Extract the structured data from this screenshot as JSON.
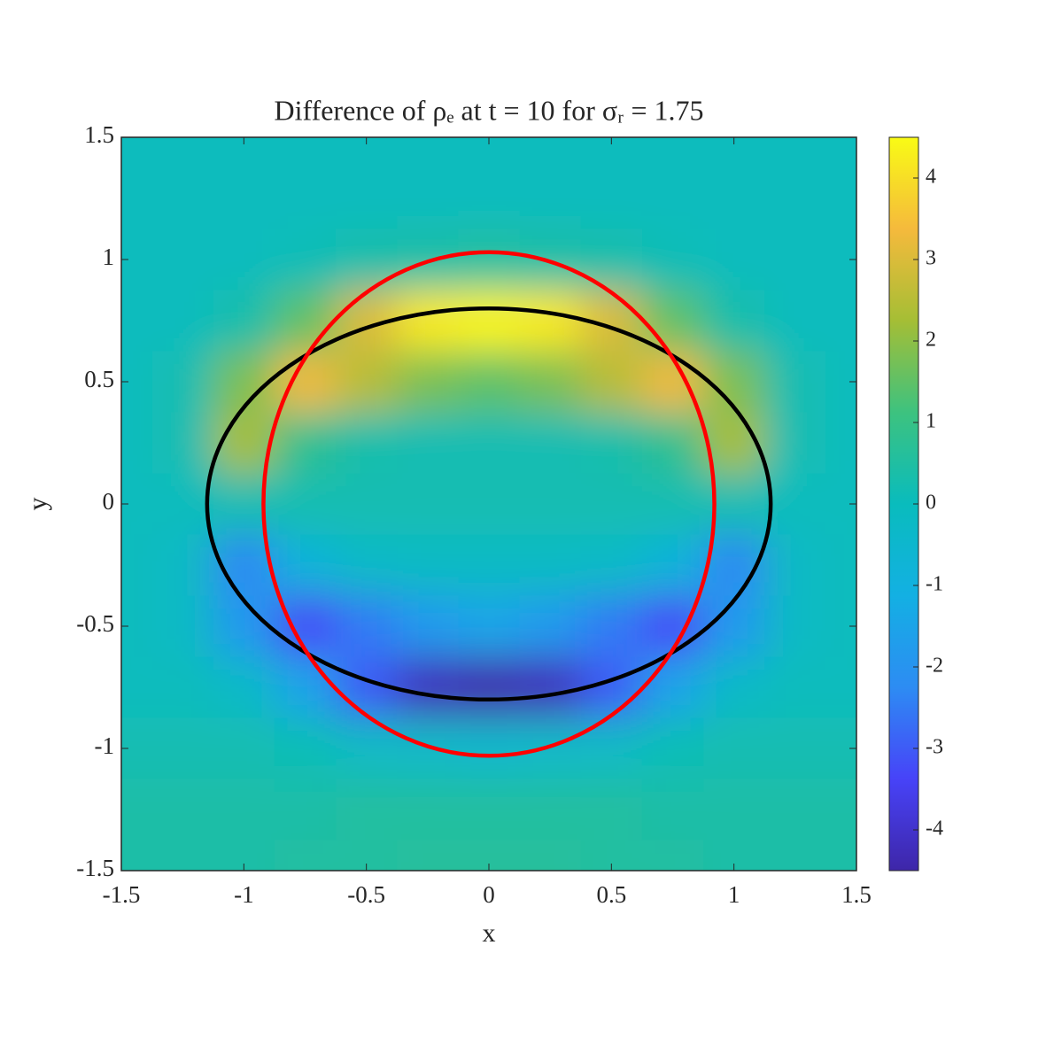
{
  "chart_data": {
    "type": "heatmap",
    "title": "Difference of ρₑ at t = 10 for σᵣ = 1.75",
    "x_label": "x",
    "y_label": "y",
    "x": [
      -1.5,
      -1.25,
      -1,
      -0.75,
      -0.5,
      -0.25,
      0,
      0.25,
      0.5,
      0.75,
      1,
      1.25,
      1.5
    ],
    "y": [
      1.5,
      1.25,
      1,
      0.75,
      0.5,
      0.25,
      0,
      -0.25,
      -0.5,
      -0.75,
      -1,
      -1.25,
      -1.5
    ],
    "z": [
      [
        0,
        0,
        0,
        0,
        0,
        0,
        0,
        0,
        0,
        0,
        0,
        0,
        0
      ],
      [
        0,
        0,
        0,
        0,
        0,
        0,
        0,
        0,
        0,
        0,
        0,
        0,
        0
      ],
      [
        0,
        0,
        0,
        0.1,
        0.3,
        0.4,
        0.5,
        0.4,
        0.3,
        0.1,
        0,
        0,
        0
      ],
      [
        0,
        0,
        0.3,
        1.5,
        3,
        4.2,
        4.4,
        4.2,
        3,
        1.5,
        0.3,
        0,
        0
      ],
      [
        0,
        0.2,
        1.8,
        3.3,
        2.5,
        1.8,
        1.5,
        1.8,
        2.5,
        3.3,
        1.8,
        0.2,
        0
      ],
      [
        0,
        0.2,
        2.3,
        0.8,
        0.3,
        0.2,
        0.2,
        0.2,
        0.3,
        0.8,
        2.3,
        0.2,
        0
      ],
      [
        0,
        0,
        0.2,
        0.2,
        0.2,
        0.2,
        0.2,
        0.2,
        0.2,
        0.2,
        0.2,
        0,
        0
      ],
      [
        0,
        -0.2,
        -2.3,
        -0.8,
        -0.3,
        -0.2,
        -0.2,
        -0.2,
        -0.3,
        -0.8,
        -2.3,
        -0.2,
        0
      ],
      [
        0,
        -0.2,
        -1.8,
        -3.3,
        -2.5,
        -1.8,
        -1.5,
        -1.8,
        -2.5,
        -3.3,
        -1.8,
        -0.2,
        0
      ],
      [
        0,
        0,
        -0.3,
        -1.5,
        -3,
        -4.2,
        -4.4,
        -4.2,
        -3,
        -1.5,
        -0.3,
        0,
        0
      ],
      [
        0.2,
        0.2,
        0.2,
        0.1,
        -0.2,
        -0.3,
        -0.4,
        -0.3,
        -0.2,
        0.1,
        0.2,
        0.2,
        0.2
      ],
      [
        0.4,
        0.4,
        0.4,
        0.4,
        0.5,
        0.5,
        0.5,
        0.5,
        0.5,
        0.4,
        0.4,
        0.4,
        0.4
      ],
      [
        0.4,
        0.4,
        0.4,
        0.5,
        0.5,
        0.6,
        0.6,
        0.6,
        0.5,
        0.5,
        0.4,
        0.4,
        0.4
      ]
    ],
    "overlays": [
      {
        "color": "#000000",
        "rx": 1.15,
        "ry": 0.8
      },
      {
        "color": "#ff0000",
        "rx": 0.92,
        "ry": 1.03
      }
    ],
    "xlim": [
      -1.5,
      1.5
    ],
    "xticks": [
      -1.5,
      -1,
      -0.5,
      0,
      0.5,
      1,
      1.5
    ],
    "ylim": [
      -1.5,
      1.5
    ],
    "yticks": [
      -1.5,
      -1,
      -0.5,
      0,
      0.5,
      1,
      1.5
    ],
    "clim": [
      -4.5,
      4.5
    ],
    "cticks": [
      -4,
      -3,
      -2,
      -1,
      0,
      1,
      2,
      3,
      4
    ],
    "colormap": [
      "#3e26a8",
      "#4743f8",
      "#2d8cf3",
      "#13b0e3",
      "#09bcbd",
      "#3dc27f",
      "#a5be35",
      "#f5ba3c",
      "#f9fb15"
    ]
  }
}
